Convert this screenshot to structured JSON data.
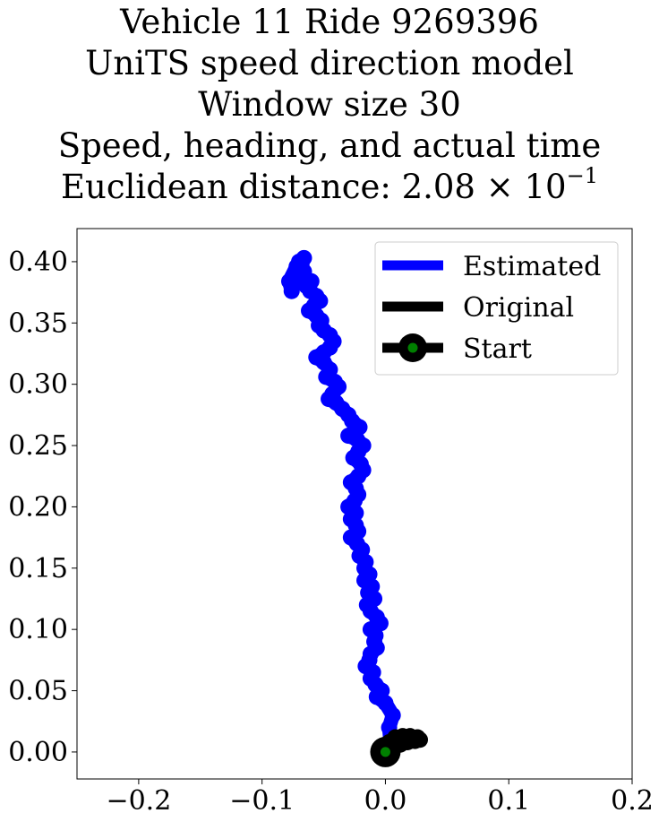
{
  "chart_data": {
    "type": "line",
    "title_lines": [
      "Vehicle 11 Ride 9269396",
      "UniTS speed direction model",
      "Window size 30",
      "Speed, heading, and actual time"
    ],
    "title_distance_prefix": "Euclidean distance: ",
    "title_distance_mantissa": "2.08",
    "title_distance_times": "×",
    "title_distance_base": "10",
    "title_distance_exponent": "−1",
    "xlabel": "",
    "ylabel": "",
    "xlim": [
      -0.25,
      0.2
    ],
    "ylim": [
      -0.022,
      0.427
    ],
    "grid": false,
    "legend_position": "top-right",
    "x_ticks": [
      -0.2,
      -0.1,
      0.0,
      0.1,
      0.2
    ],
    "x_tick_labels": [
      "−0.2",
      "−0.1",
      "0.0",
      "0.1",
      "0.2"
    ],
    "y_ticks": [
      0.0,
      0.05,
      0.1,
      0.15,
      0.2,
      0.25,
      0.3,
      0.35,
      0.4
    ],
    "y_tick_labels": [
      "0.00",
      "0.05",
      "0.10",
      "0.15",
      "0.20",
      "0.25",
      "0.30",
      "0.35",
      "0.40"
    ],
    "series": [
      {
        "name": "Estimated",
        "color": "#0000ff",
        "x": [
          0.0,
          0.004,
          0.003,
          0.006,
          0.0,
          -0.007,
          -0.003,
          -0.008,
          -0.012,
          -0.01,
          -0.016,
          -0.013,
          -0.012,
          -0.007,
          -0.009,
          -0.008,
          -0.012,
          -0.004,
          -0.007,
          -0.012,
          -0.015,
          -0.009,
          -0.014,
          -0.011,
          -0.017,
          -0.013,
          -0.017,
          -0.016,
          -0.021,
          -0.019,
          -0.023,
          -0.028,
          -0.022,
          -0.024,
          -0.028,
          -0.024,
          -0.03,
          -0.025,
          -0.022,
          -0.024,
          -0.028,
          -0.022,
          -0.018,
          -0.02,
          -0.026,
          -0.022,
          -0.018,
          -0.023,
          -0.03,
          -0.025,
          -0.021,
          -0.027,
          -0.03,
          -0.035,
          -0.04,
          -0.046,
          -0.043,
          -0.038,
          -0.041,
          -0.048,
          -0.045,
          -0.05,
          -0.056,
          -0.05,
          -0.045,
          -0.042,
          -0.045,
          -0.05,
          -0.054,
          -0.052,
          -0.056,
          -0.062,
          -0.058,
          -0.053,
          -0.056,
          -0.061,
          -0.064,
          -0.06,
          -0.068,
          -0.073,
          -0.066,
          -0.072,
          -0.07,
          -0.078,
          -0.076,
          -0.071,
          -0.068,
          -0.066
        ],
        "y": [
          0.0,
          0.01,
          0.02,
          0.03,
          0.04,
          0.045,
          0.05,
          0.055,
          0.06,
          0.065,
          0.07,
          0.075,
          0.08,
          0.085,
          0.09,
          0.095,
          0.1,
          0.105,
          0.11,
          0.115,
          0.12,
          0.125,
          0.13,
          0.135,
          0.14,
          0.145,
          0.15,
          0.155,
          0.16,
          0.165,
          0.17,
          0.175,
          0.18,
          0.185,
          0.19,
          0.195,
          0.2,
          0.205,
          0.21,
          0.215,
          0.22,
          0.225,
          0.23,
          0.235,
          0.24,
          0.245,
          0.25,
          0.255,
          0.258,
          0.262,
          0.265,
          0.27,
          0.275,
          0.28,
          0.285,
          0.288,
          0.292,
          0.298,
          0.302,
          0.306,
          0.312,
          0.318,
          0.322,
          0.326,
          0.33,
          0.335,
          0.34,
          0.344,
          0.348,
          0.352,
          0.356,
          0.36,
          0.364,
          0.368,
          0.372,
          0.376,
          0.38,
          0.384,
          0.388,
          0.39,
          0.392,
          0.396,
          0.4,
          0.384,
          0.376,
          0.392,
          0.398,
          0.403
        ]
      },
      {
        "name": "Original",
        "color": "#000000",
        "x": [
          0.0,
          0.006,
          0.012,
          0.018,
          0.024,
          0.028,
          0.026,
          0.02,
          0.014,
          0.008,
          0.003,
          0.0
        ],
        "y": [
          0.0,
          0.003,
          0.006,
          0.008,
          0.009,
          0.01,
          0.012,
          0.013,
          0.013,
          0.012,
          0.008,
          0.004
        ]
      },
      {
        "name": "Start",
        "color": "#000000",
        "marker_face": "#008000",
        "x": [
          0.0
        ],
        "y": [
          0.0
        ]
      }
    ]
  }
}
